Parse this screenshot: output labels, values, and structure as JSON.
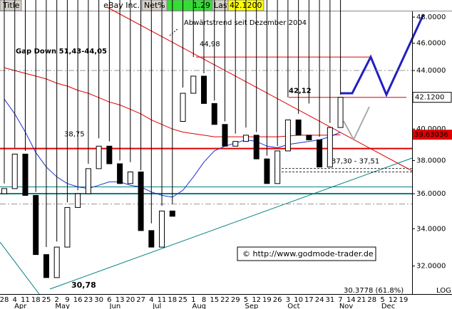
{
  "header": {
    "title": "Title",
    "symbol": "eBay Inc.",
    "net_label": "Net%",
    "net": 1.29,
    "last_label": "Last"
  },
  "chart_data": {
    "type": "candlestick",
    "note": "Abwärtstrend seit Dezember 2004",
    "gap_label": "Gap Down 51,43-44,05",
    "copyright": "© http://www.godmode-trader.de",
    "scale_label": "LOG",
    "log_scale": true,
    "grid": false,
    "categories": [
      "28",
      "4",
      "11",
      "18",
      "25",
      "2",
      "9",
      "16",
      "23",
      "30",
      "6",
      "13",
      "20",
      "27",
      "4",
      "11",
      "18",
      "25",
      "1",
      "8",
      "15",
      "22",
      "29",
      "5",
      "12",
      "19",
      "26",
      "3",
      "10",
      "17",
      "24",
      "31",
      "7",
      "14",
      "21",
      "28",
      "5",
      "12",
      "19"
    ],
    "months": [
      null,
      "Apr",
      null,
      null,
      null,
      "May",
      null,
      null,
      null,
      null,
      "Jun",
      null,
      null,
      null,
      "Jul",
      null,
      null,
      null,
      "Aug",
      null,
      null,
      null,
      null,
      "Sep",
      null,
      null,
      null,
      "Oct",
      null,
      null,
      null,
      null,
      "Nov",
      null,
      null,
      null,
      "Dec",
      null,
      null
    ],
    "open": [
      36.0,
      36.3,
      38.4,
      35.9,
      32.6,
      31.4,
      33.0,
      35.2,
      36.0,
      37.5,
      38.9,
      37.8,
      36.6,
      37.3,
      33.9,
      33.0,
      35.0,
      40.5,
      42.4,
      43.6,
      41.7,
      40.3,
      38.9,
      39.2,
      39.6,
      38.1,
      36.6,
      38.6,
      40.6,
      39.6,
      39.3,
      37.6,
      40.1,
      null,
      null,
      null,
      null,
      null,
      null
    ],
    "high": [
      36.6,
      38.8,
      38.6,
      36.1,
      33.0,
      33.3,
      35.5,
      36.2,
      37.8,
      39.4,
      39.2,
      38.0,
      37.9,
      37.4,
      34.3,
      35.3,
      35.4,
      42.8,
      44.98,
      43.8,
      41.9,
      40.5,
      39.7,
      40.1,
      39.8,
      38.3,
      38.9,
      42.12,
      41.0,
      41.7,
      39.5,
      40.4,
      42.3,
      null,
      null,
      null,
      null,
      null,
      null
    ],
    "low": {
      "value": 30.78,
      "label": "30,78"
    },
    "close": [
      36.3,
      38.4,
      35.9,
      32.6,
      31.4,
      33.0,
      35.2,
      36.0,
      37.5,
      38.9,
      37.8,
      36.6,
      37.3,
      33.9,
      33.0,
      35.0,
      34.7,
      42.4,
      43.6,
      41.7,
      40.3,
      38.9,
      39.2,
      39.6,
      38.1,
      36.6,
      38.6,
      40.6,
      39.6,
      39.3,
      37.6,
      40.1,
      42.12,
      null,
      null,
      null,
      null,
      null,
      null
    ],
    "series": [
      {
        "color": "#e00000",
        "values": [
          44.2,
          44.0,
          43.8,
          43.6,
          43.4,
          43.1,
          42.9,
          42.6,
          42.4,
          42.1,
          41.8,
          41.6,
          41.3,
          41.0,
          40.6,
          40.3,
          40.0,
          39.8,
          39.7,
          39.6,
          39.5,
          39.5,
          39.5,
          39.5,
          39.5,
          39.5,
          39.5,
          39.55,
          39.6,
          39.6,
          39.6,
          39.6,
          39.63036,
          null,
          null,
          null,
          null,
          null,
          null
        ]
      },
      {
        "color": "#2030d0",
        "values": [
          42.0,
          41.0,
          39.8,
          38.5,
          37.6,
          37.0,
          36.6,
          36.4,
          36.3,
          36.5,
          36.7,
          36.7,
          36.5,
          36.4,
          36.1,
          35.9,
          35.8,
          36.2,
          37.0,
          37.9,
          38.6,
          38.9,
          39.1,
          39.3,
          39.2,
          38.9,
          38.8,
          39.0,
          39.1,
          39.2,
          39.3,
          39.5,
          39.8,
          null,
          null,
          null,
          null,
          null,
          null
        ]
      }
    ],
    "last": {
      "value": 42.12,
      "label": "42.1200"
    },
    "levels": [
      {
        "value": 44.98,
        "label": "44,98"
      },
      {
        "value": 42.12,
        "label": "42,12"
      },
      {
        "value": 38.75,
        "label": "38,75"
      }
    ],
    "level_color": "#e00000",
    "range": {
      "values": [
        37.3,
        37.51
      ],
      "label": "37,30 - 37,51"
    },
    "support_lines": [
      36.4,
      36.0
    ],
    "support_color": "#008080",
    "dashdot_lines": [
      44.0,
      35.4
    ],
    "fib": {
      "value": 30.3778,
      "label": "30.3778 (61.8%)"
    },
    "ylim": [
      30.57,
      48.45
    ],
    "yticks": [
      {
        "value": 48,
        "label": "48.0000"
      },
      {
        "value": 46,
        "label": "46.0000"
      },
      {
        "value": 44,
        "label": "44.0000"
      },
      {
        "value": 40,
        "label": "40.0000"
      },
      {
        "value": 38,
        "label": "38.0000"
      },
      {
        "value": 36,
        "label": "36.0000"
      },
      {
        "value": 34,
        "label": "34.0000"
      },
      {
        "value": 32,
        "label": "32.0000"
      }
    ]
  }
}
